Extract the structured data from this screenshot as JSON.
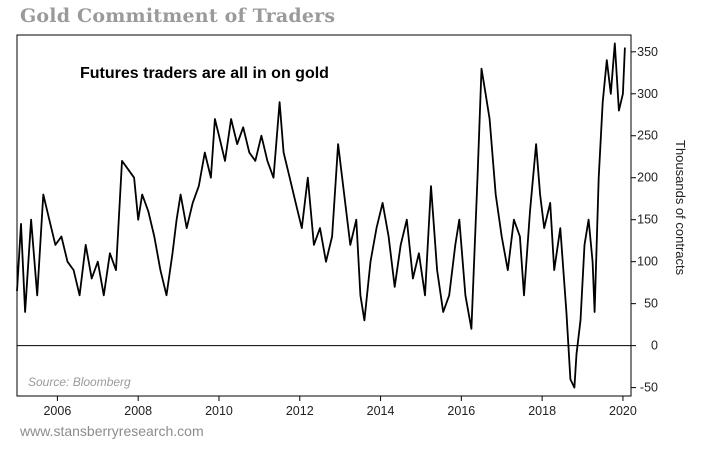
{
  "page": {
    "title": "Gold Commitment of Traders",
    "footer": "www.stansberryresearch.com"
  },
  "chart_data": {
    "type": "line",
    "title": "Gold Commitment of Traders",
    "annotation": "Futures traders are all in on gold",
    "source": "Source: Bloomberg",
    "xlabel": "",
    "ylabel": "Thousands of contracts",
    "xlim": [
      2005,
      2020.2
    ],
    "ylim": [
      -60,
      370
    ],
    "x_ticks": [
      "2006",
      "2008",
      "2010",
      "2012",
      "2014",
      "2016",
      "2018",
      "2020"
    ],
    "y_ticks": [
      "-50",
      "0",
      "50",
      "100",
      "150",
      "200",
      "250",
      "300",
      "350"
    ],
    "y_tick_values": [
      -50,
      0,
      50,
      100,
      150,
      200,
      250,
      300,
      350
    ],
    "zero_line": true,
    "grid": false,
    "line_color": "#000000",
    "series": [
      {
        "x": [
          2005.0,
          2005.1,
          2005.2,
          2005.35,
          2005.5,
          2005.65,
          2005.8,
          2005.95,
          2006.1,
          2006.25,
          2006.4,
          2006.55,
          2006.7,
          2006.85,
          2007.0,
          2007.15,
          2007.3,
          2007.45,
          2007.6,
          2007.75,
          2007.9,
          2008.0,
          2008.1,
          2008.25,
          2008.4,
          2008.55,
          2008.7,
          2008.85,
          2008.95,
          2009.05,
          2009.2,
          2009.35,
          2009.5,
          2009.65,
          2009.8,
          2009.9,
          2010.0,
          2010.15,
          2010.3,
          2010.45,
          2010.6,
          2010.75,
          2010.9,
          2011.05,
          2011.2,
          2011.35,
          2011.5,
          2011.6,
          2011.75,
          2011.9,
          2012.05,
          2012.2,
          2012.35,
          2012.5,
          2012.65,
          2012.8,
          2012.95,
          2013.1,
          2013.25,
          2013.4,
          2013.5,
          2013.6,
          2013.75,
          2013.9,
          2014.05,
          2014.2,
          2014.35,
          2014.5,
          2014.65,
          2014.8,
          2014.95,
          2015.1,
          2015.25,
          2015.4,
          2015.55,
          2015.7,
          2015.85,
          2015.95,
          2016.1,
          2016.25,
          2016.4,
          2016.5,
          2016.6,
          2016.7,
          2016.85,
          2017.0,
          2017.15,
          2017.3,
          2017.45,
          2017.55,
          2017.7,
          2017.85,
          2017.95,
          2018.05,
          2018.2,
          2018.3,
          2018.45,
          2018.6,
          2018.7,
          2018.8,
          2018.85,
          2018.95,
          2019.05,
          2019.15,
          2019.25,
          2019.3,
          2019.4,
          2019.5,
          2019.6,
          2019.7,
          2019.8,
          2019.9,
          2020.0,
          2020.05
        ],
        "y": [
          65,
          145,
          40,
          150,
          60,
          180,
          150,
          120,
          130,
          100,
          90,
          60,
          120,
          80,
          100,
          60,
          110,
          90,
          220,
          210,
          200,
          150,
          180,
          160,
          130,
          90,
          60,
          110,
          150,
          180,
          140,
          170,
          190,
          230,
          200,
          270,
          250,
          220,
          270,
          240,
          260,
          230,
          220,
          250,
          220,
          200,
          290,
          230,
          200,
          170,
          140,
          200,
          120,
          140,
          100,
          130,
          240,
          180,
          120,
          150,
          60,
          30,
          100,
          140,
          170,
          130,
          70,
          120,
          150,
          80,
          110,
          60,
          190,
          90,
          40,
          60,
          120,
          150,
          60,
          20,
          200,
          330,
          300,
          270,
          180,
          130,
          90,
          150,
          130,
          60,
          160,
          240,
          180,
          140,
          170,
          90,
          140,
          40,
          -40,
          -50,
          -10,
          30,
          120,
          150,
          100,
          40,
          200,
          290,
          340,
          300,
          360,
          280,
          300,
          355
        ]
      }
    ]
  }
}
